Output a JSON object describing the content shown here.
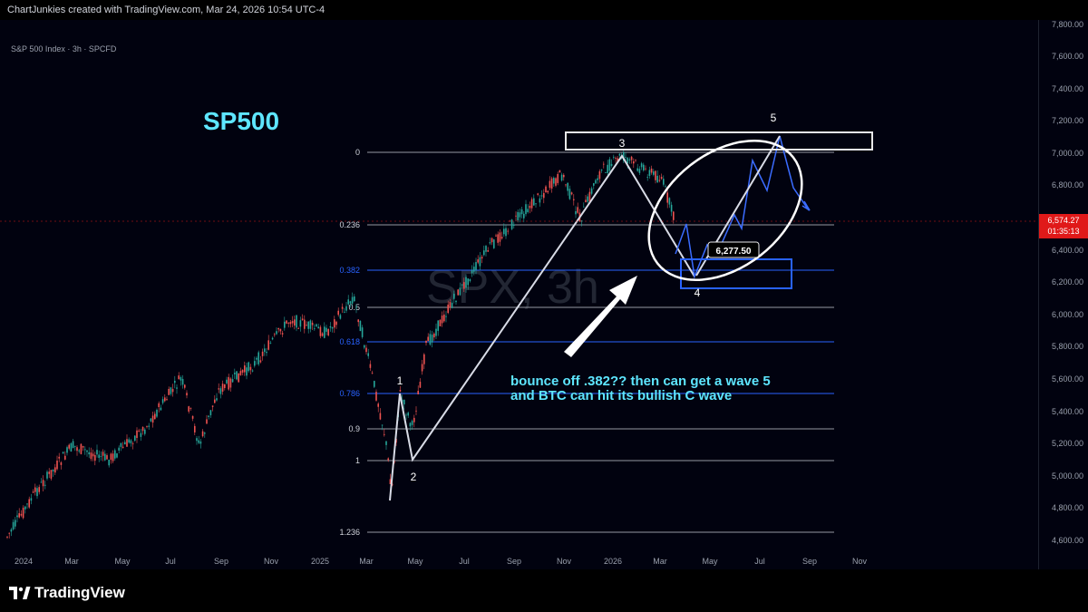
{
  "header": {
    "caption": "ChartJunkies created with TradingView.com, Mar 24, 2026 10:54 UTC-4"
  },
  "chart": {
    "legend": "S&P 500 Index · 3h · SPCFD",
    "watermark": "SPX, 3h",
    "label_main": "SP500",
    "note_line1": "bounce off .382?? then can get a wave 5",
    "note_line2": "and BTC can hit its bullish C wave",
    "target_box_label": "6,277.50",
    "wave_labels": [
      "1",
      "2",
      "3",
      "4",
      "5"
    ],
    "fib_levels": [
      "0",
      "0.236",
      "0.382",
      "0.5",
      "0.618",
      "0.786",
      "0.9",
      "1",
      "1.236"
    ],
    "current_price": "6,574.27",
    "countdown": "01:35:13",
    "colors": {
      "background": "#01020f",
      "accent": "#5ee6ff",
      "up": "#26a69a",
      "down": "#ef5350",
      "fib_blue": "#2962ff",
      "price_tag": "#e01919"
    }
  },
  "chart_data": {
    "type": "line",
    "title": "S&P 500 Index · 3h · SPCFD",
    "xlabel": "",
    "ylabel": "",
    "ylim": [
      4500,
      7850
    ],
    "y_ticks": [
      "7,800.00",
      "7,600.00",
      "7,400.00",
      "7,200.00",
      "7,000.00",
      "6,800.00",
      "6,600.00",
      "6,400.00",
      "6,200.00",
      "6,000.00",
      "5,800.00",
      "5,600.00",
      "5,400.00",
      "5,200.00",
      "5,000.00",
      "4,800.00",
      "4,600.00"
    ],
    "x_ticks": [
      "2024",
      "Mar",
      "May",
      "Jul",
      "Sep",
      "Nov",
      "2025",
      "Mar",
      "May",
      "Jul",
      "Sep",
      "Nov",
      "2026",
      "Mar",
      "May",
      "Jul",
      "Sep",
      "Nov"
    ],
    "series": [
      {
        "values_desc": "price",
        "x": [
          "2024-01",
          "2024-03",
          "2024-05",
          "2024-07",
          "2024-09",
          "2024-11",
          "2025-01",
          "2025-02",
          "2025-03",
          "2025-04",
          "2025-04b",
          "2025-05",
          "2025-07",
          "2025-09",
          "2025-11",
          "2026-01",
          "2026-02",
          "2026-03"
        ],
        "y": [
          4700,
          5100,
          5250,
          5550,
          5650,
          5900,
          6000,
          6120,
          5700,
          4900,
          5400,
          5750,
          6250,
          6550,
          6850,
          6950,
          6900,
          6574
        ]
      }
    ],
    "fib_retracement": [
      {
        "level": "0",
        "price": 7000
      },
      {
        "level": "0.236",
        "price": 6550
      },
      {
        "level": "0.382",
        "price": 6270
      },
      {
        "level": "0.5",
        "price": 6050
      },
      {
        "level": "0.618",
        "price": 5830
      },
      {
        "level": "0.786",
        "price": 5505
      },
      {
        "level": "0.9",
        "price": 5290
      },
      {
        "level": "1",
        "price": 5100
      },
      {
        "level": "1.236",
        "price": 4650
      }
    ]
  }
}
